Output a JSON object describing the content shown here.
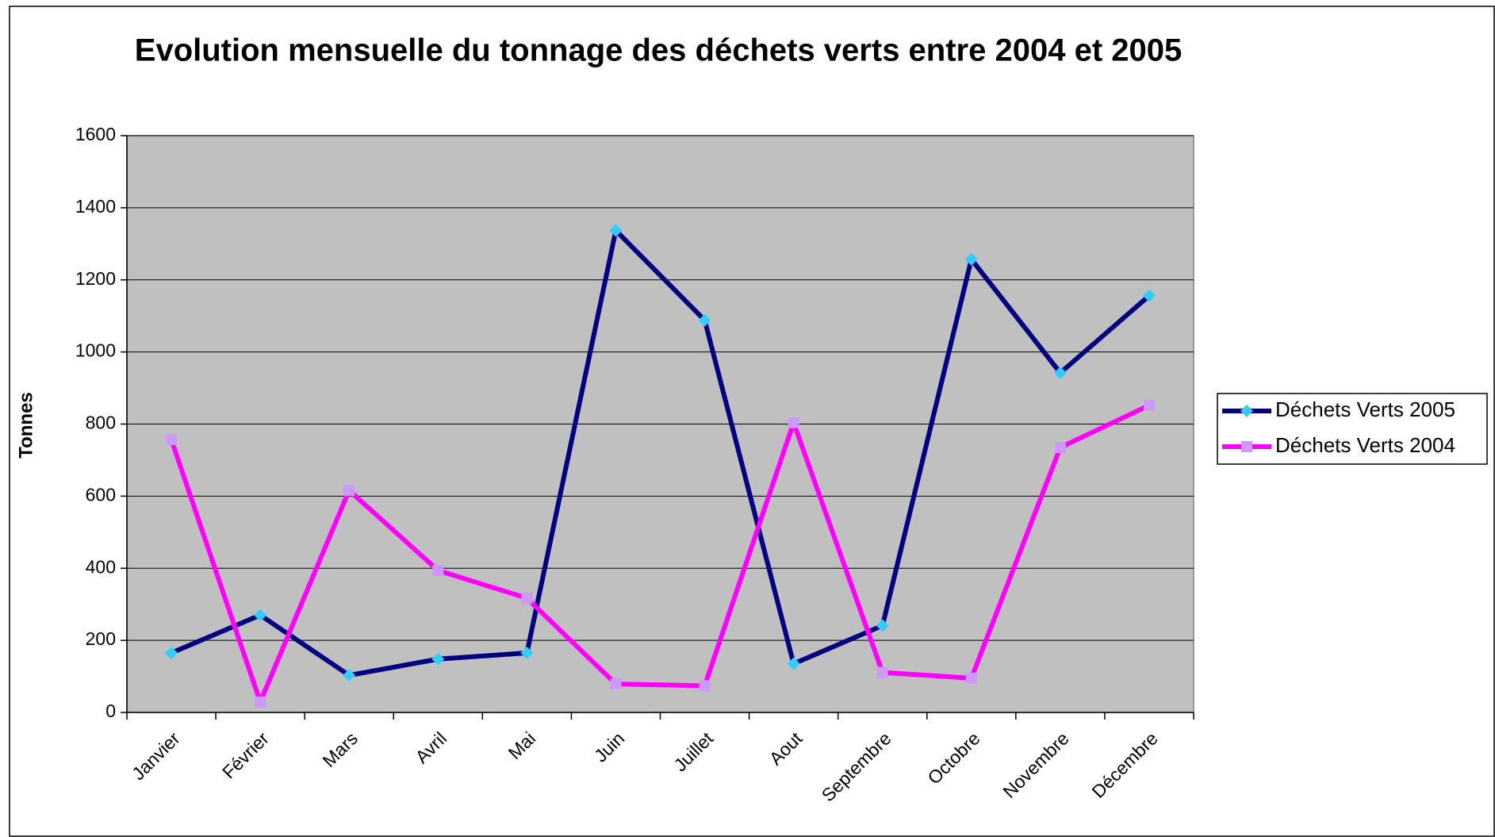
{
  "chart_data": {
    "type": "line",
    "title": "Evolution mensuelle du tonnage des déchets verts entre 2004 et 2005",
    "y_label": "Tonnes",
    "categories": [
      "Janvier",
      "Février",
      "Mars",
      "Avril",
      "Mai",
      "Juin",
      "Juillet",
      "Aout",
      "Septembre",
      "Octobre",
      "Novembre",
      "Décembre"
    ],
    "series": [
      {
        "name": "Déchets Verts 2005",
        "color": "#000080",
        "marker": "diamond",
        "marker_color": "#33ccff",
        "values": [
          165,
          270,
          103,
          148,
          165,
          1337,
          1088,
          135,
          241,
          1257,
          942,
          1156
        ]
      },
      {
        "name": "Déchets Verts 2004",
        "color": "#ff00ff",
        "marker": "square",
        "marker_color": "#cc99ff",
        "values": [
          757,
          29,
          616,
          394,
          317,
          79,
          74,
          804,
          111,
          95,
          735,
          852
        ]
      }
    ],
    "ylim": [
      0,
      1600
    ],
    "yticks": [
      0,
      200,
      400,
      600,
      800,
      1000,
      1200,
      1400,
      1600
    ],
    "grid": true,
    "plot_background": "#c0c0c0",
    "legend": "right"
  }
}
